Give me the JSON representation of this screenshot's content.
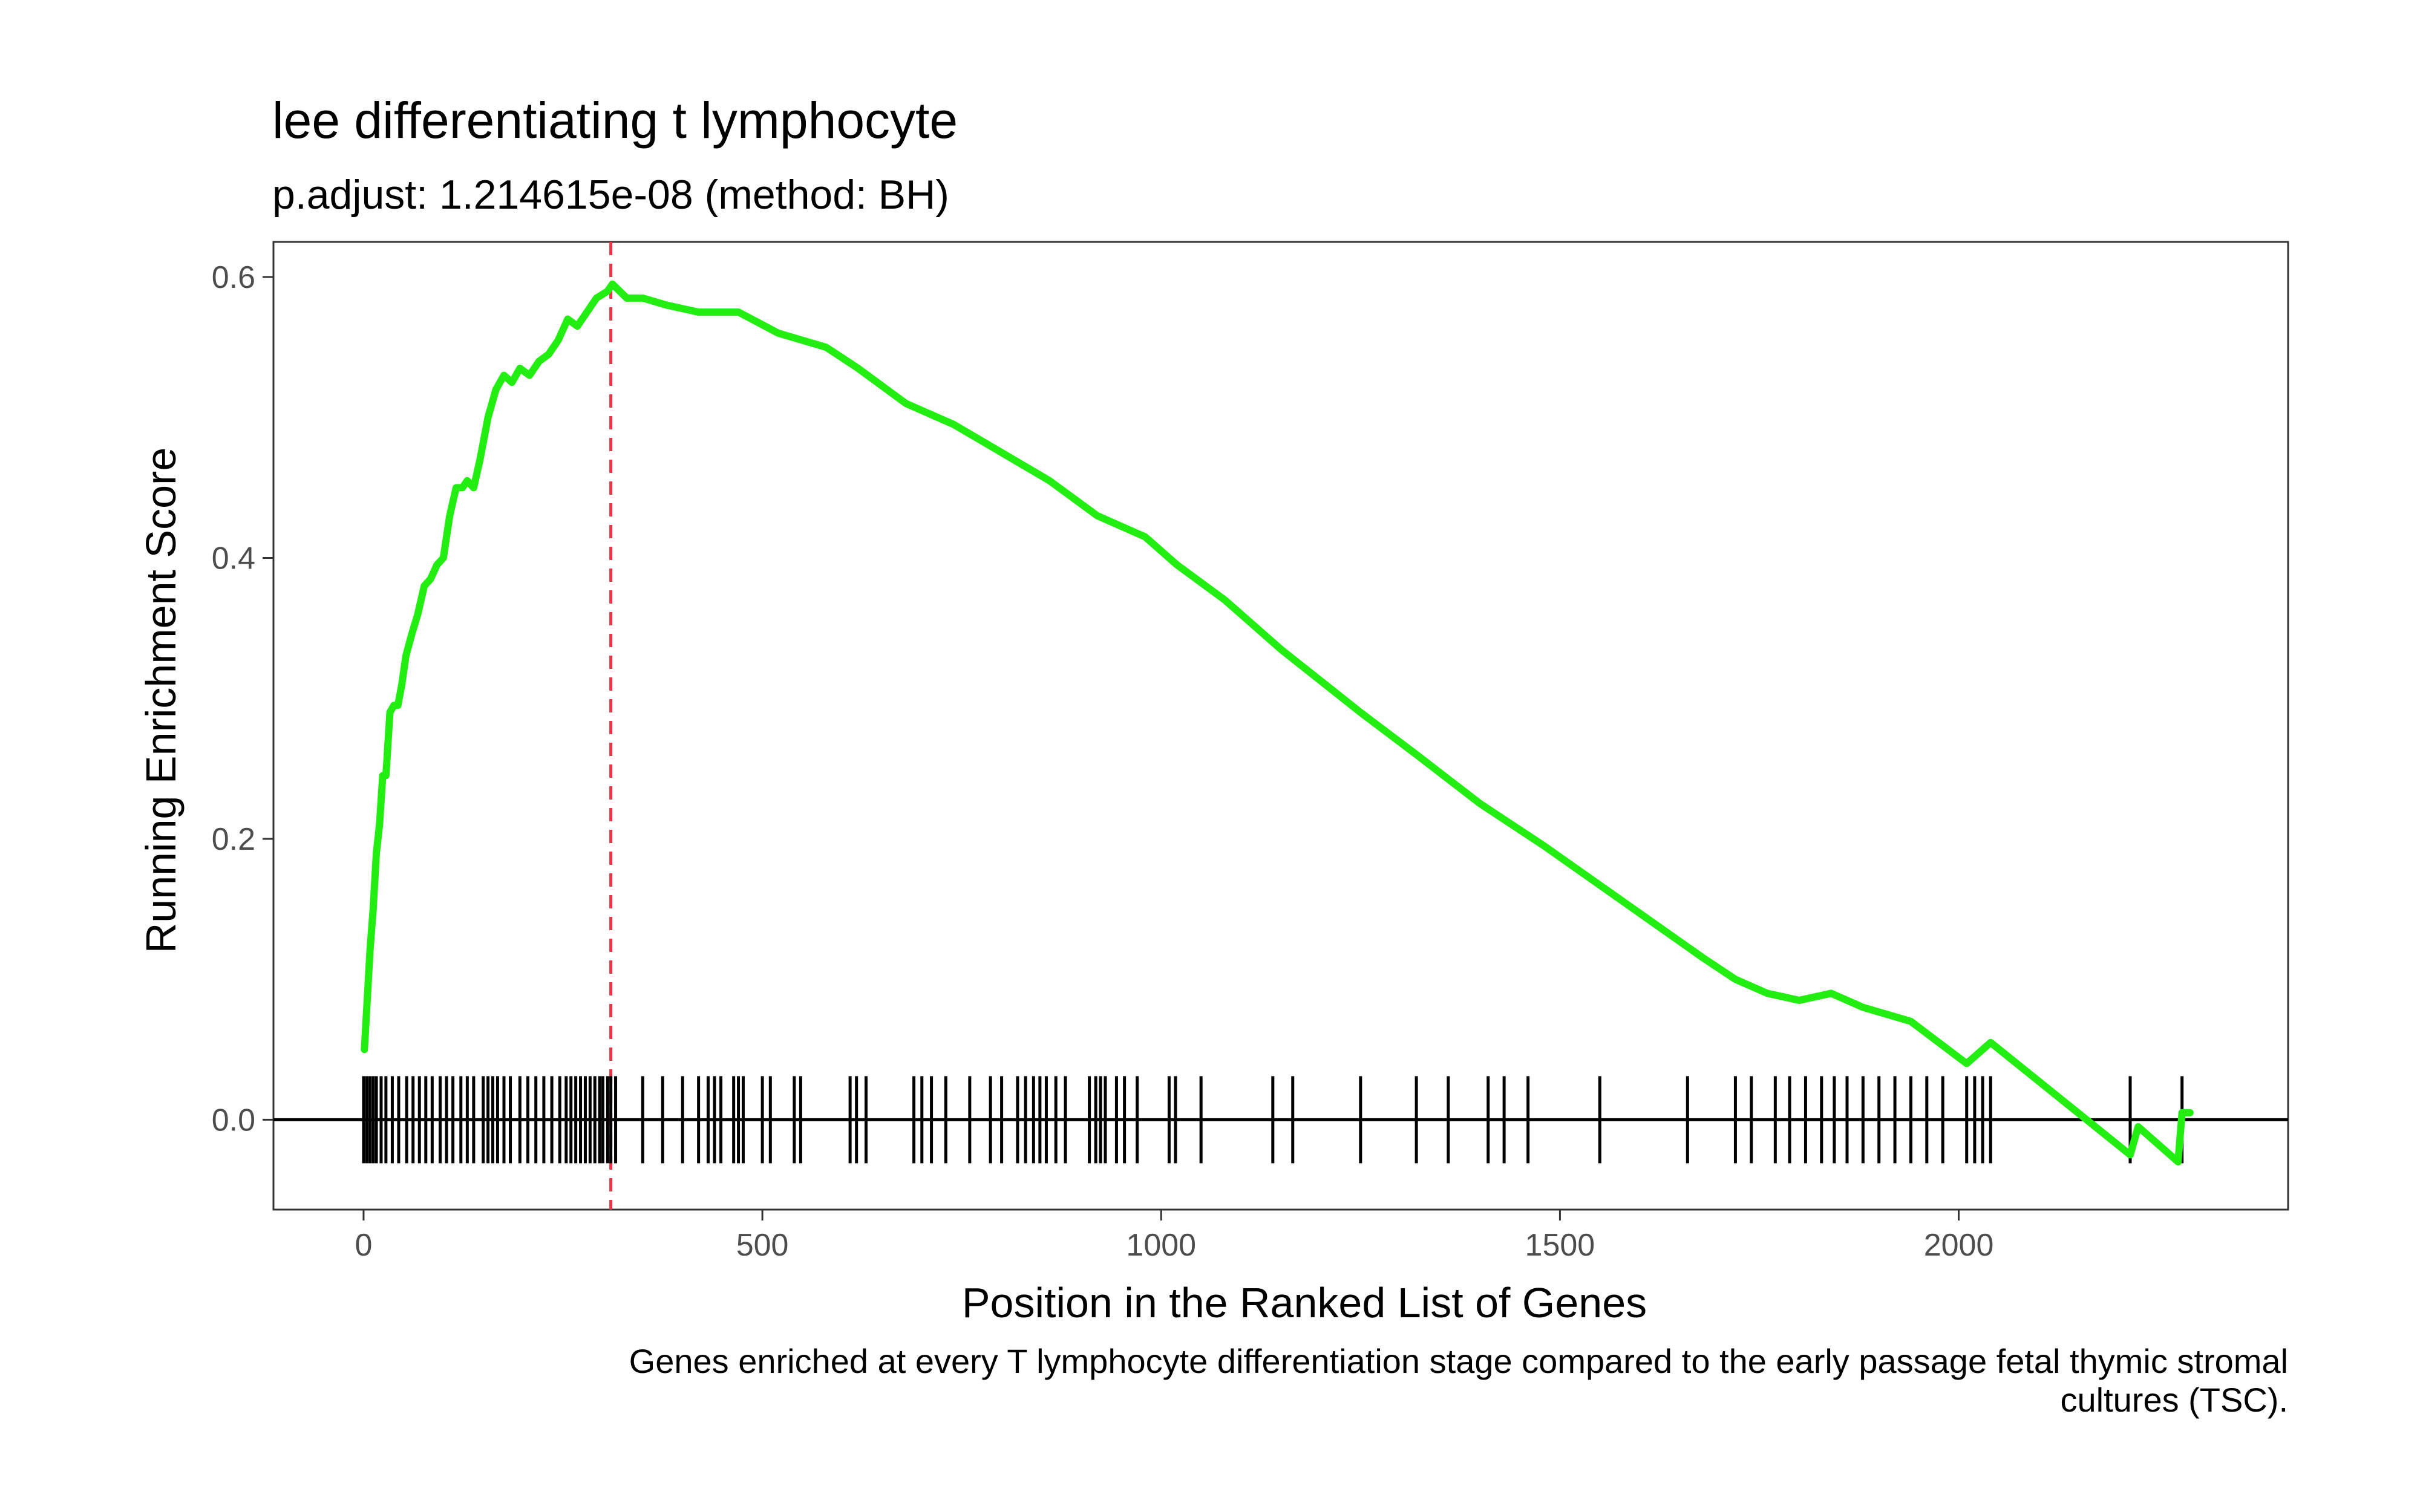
{
  "chart_data": {
    "type": "line",
    "title": "lee differentiating t lymphocyte",
    "subtitle": "p.adjust: 1.214615e-08 (method: BH)",
    "xlabel": "Position in the Ranked List of Genes",
    "ylabel": "Running Enrichment Score",
    "caption_lines": [
      "Genes enriched at every T lymphocyte differentiation stage compared to the early passage fetal thymic stromal",
      "cultures (TSC)."
    ],
    "xlim": [
      -113,
      2413
    ],
    "ylim": [
      -0.064,
      0.625
    ],
    "x_ticks": [
      0,
      500,
      1000,
      1500,
      2000
    ],
    "x_tick_labels": [
      "0",
      "500",
      "1000",
      "1500",
      "2000"
    ],
    "y_ticks": [
      0.0,
      0.2,
      0.4,
      0.6
    ],
    "y_tick_labels": [
      "0.0",
      "0.2",
      "0.4",
      "0.6"
    ],
    "grid": false,
    "colors": {
      "line": "#22ee11",
      "peak_marker": "#ee3344",
      "hits": "#000000",
      "zero_line": "#000000"
    },
    "peak_position": 310,
    "series": [
      {
        "x": [
          1,
          5,
          8,
          12,
          16,
          20,
          24,
          28,
          33,
          38,
          43,
          48,
          53,
          60,
          68,
          76,
          84,
          92,
          100,
          108,
          116,
          124,
          130,
          138,
          146,
          156,
          166,
          176,
          186,
          196,
          208,
          220,
          232,
          244,
          256,
          268,
          280,
          292,
          306,
          312,
          330,
          350,
          380,
          420,
          470,
          520,
          580,
          620,
          680,
          740,
          800,
          860,
          920,
          980,
          1020,
          1080,
          1150,
          1250,
          1320,
          1400,
          1480,
          1580,
          1680,
          1720,
          1760,
          1800,
          1840,
          1880,
          1940,
          2010,
          2040,
          2215,
          2225,
          2275,
          2280,
          2290
        ],
        "y": [
          0.05,
          0.09,
          0.12,
          0.15,
          0.19,
          0.21,
          0.245,
          0.245,
          0.29,
          0.295,
          0.295,
          0.31,
          0.33,
          0.345,
          0.36,
          0.38,
          0.385,
          0.395,
          0.4,
          0.43,
          0.45,
          0.45,
          0.455,
          0.45,
          0.47,
          0.5,
          0.52,
          0.53,
          0.525,
          0.535,
          0.53,
          0.54,
          0.545,
          0.555,
          0.57,
          0.565,
          0.575,
          0.585,
          0.59,
          0.595,
          0.585,
          0.585,
          0.58,
          0.575,
          0.575,
          0.56,
          0.55,
          0.535,
          0.51,
          0.495,
          0.475,
          0.455,
          0.43,
          0.415,
          0.395,
          0.37,
          0.335,
          0.29,
          0.26,
          0.225,
          0.195,
          0.155,
          0.115,
          0.1,
          0.09,
          0.085,
          0.09,
          0.08,
          0.07,
          0.04,
          0.055,
          -0.025,
          -0.005,
          -0.03,
          0.005,
          0.005
        ]
      }
    ],
    "hit_positions": [
      0,
      4,
      8,
      12,
      16,
      22,
      28,
      36,
      44,
      54,
      62,
      70,
      78,
      86,
      96,
      104,
      112,
      122,
      130,
      138,
      150,
      156,
      162,
      168,
      176,
      184,
      196,
      206,
      216,
      226,
      236,
      246,
      254,
      260,
      266,
      272,
      278,
      284,
      290,
      296,
      300,
      306,
      310,
      316,
      350,
      375,
      400,
      420,
      432,
      440,
      448,
      464,
      470,
      476,
      500,
      510,
      540,
      548,
      610,
      618,
      630,
      690,
      700,
      712,
      730,
      760,
      786,
      800,
      820,
      830,
      840,
      848,
      856,
      868,
      880,
      910,
      918,
      924,
      930,
      944,
      954,
      970,
      1010,
      1018,
      1050,
      1140,
      1165,
      1250,
      1320,
      1360,
      1410,
      1430,
      1460,
      1550,
      1660,
      1720,
      1740,
      1770,
      1788,
      1808,
      1828,
      1844,
      1860,
      1880,
      1900,
      1920,
      1940,
      1960,
      1980,
      2010,
      2020,
      2030,
      2040,
      2215,
      2280
    ]
  }
}
